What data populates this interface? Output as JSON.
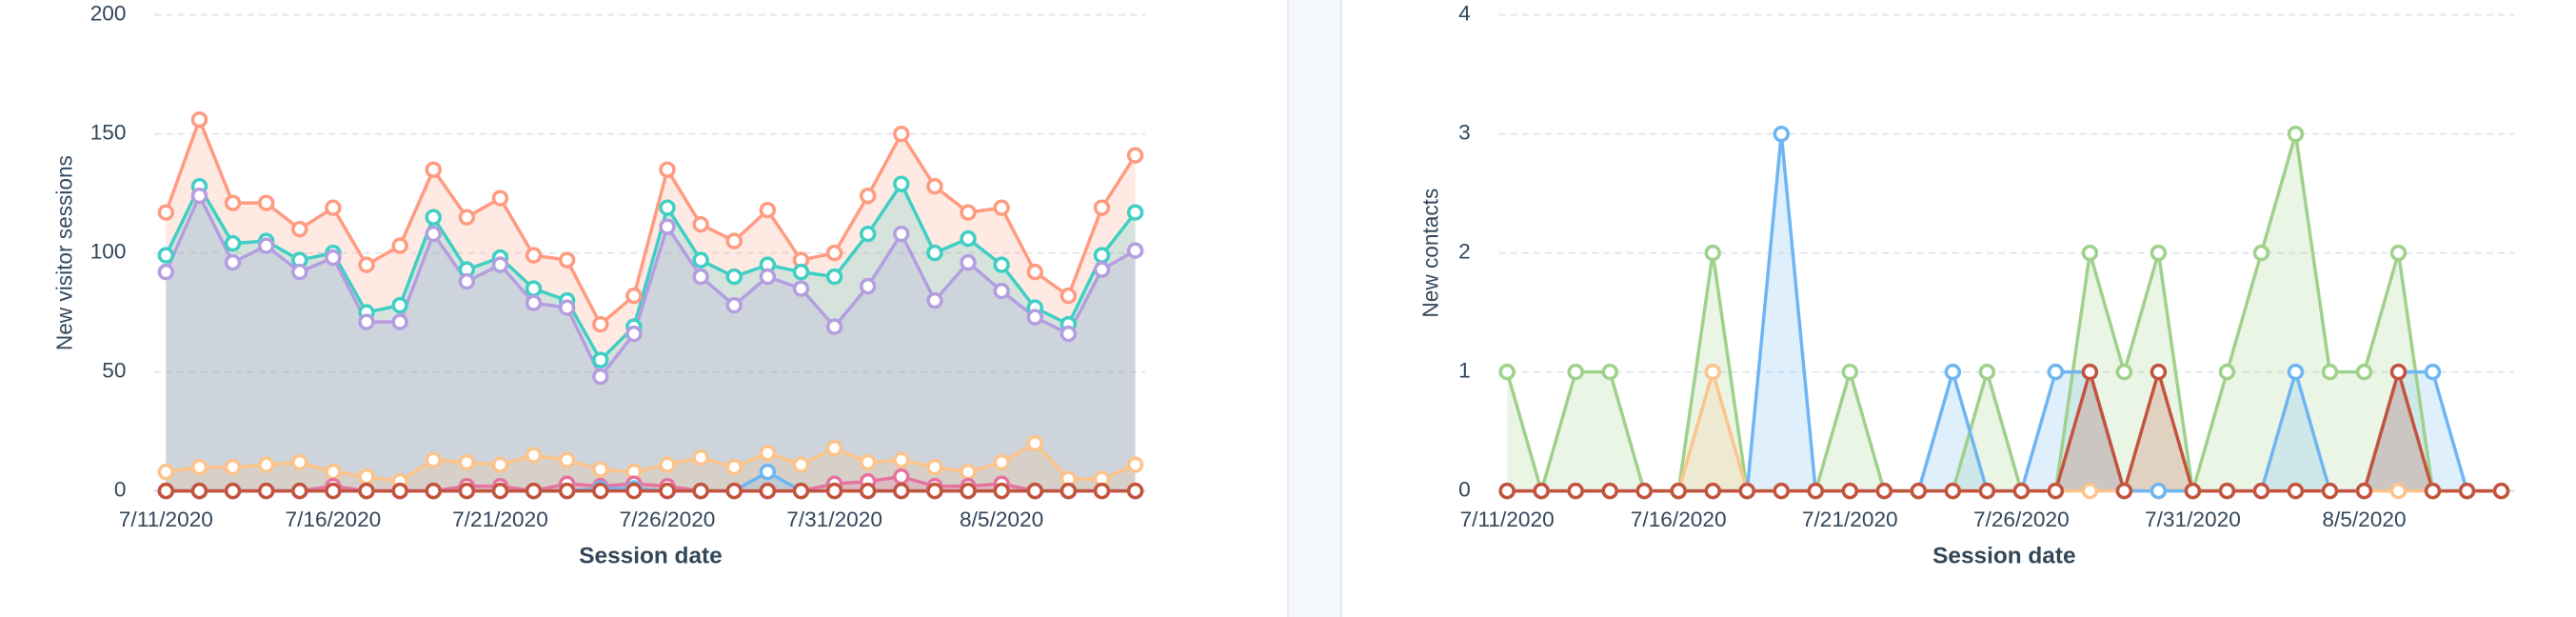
{
  "chart_data": [
    {
      "type": "area",
      "ylabel": "New visitor sessions",
      "xlabel": "Session date",
      "categories": [
        "7/11/2020",
        null,
        null,
        null,
        null,
        "7/16/2020",
        null,
        null,
        null,
        null,
        "7/21/2020",
        null,
        null,
        null,
        null,
        "7/26/2020",
        null,
        null,
        null,
        null,
        "7/31/2020",
        null,
        null,
        null,
        null,
        "8/5/2020",
        null,
        null,
        null,
        null
      ],
      "ylim": [
        0,
        200
      ],
      "yticks": [
        0,
        50,
        100,
        150,
        200
      ],
      "grid": true,
      "series": [
        {
          "color": "#ff9b80",
          "values": [
            117,
            156,
            121,
            121,
            110,
            119,
            95,
            103,
            135,
            115,
            123,
            99,
            97,
            70,
            82,
            135,
            112,
            105,
            118,
            97,
            100,
            124,
            150,
            128,
            117,
            119,
            92,
            82,
            119,
            141
          ]
        },
        {
          "color": "#3fcfc4",
          "values": [
            99,
            128,
            104,
            105,
            97,
            100,
            75,
            78,
            115,
            93,
            98,
            85,
            80,
            55,
            69,
            119,
            97,
            90,
            95,
            92,
            90,
            108,
            129,
            100,
            106,
            95,
            77,
            70,
            99,
            117
          ]
        },
        {
          "color": "#b49ee0",
          "values": [
            92,
            124,
            96,
            103,
            92,
            98,
            71,
            71,
            108,
            88,
            95,
            79,
            77,
            48,
            66,
            111,
            90,
            78,
            90,
            85,
            69,
            86,
            108,
            80,
            96,
            84,
            73,
            66,
            93,
            101
          ]
        },
        {
          "color": "#fcc38a",
          "values": [
            8,
            10,
            10,
            11,
            12,
            8,
            6,
            4,
            13,
            12,
            11,
            15,
            13,
            9,
            8,
            11,
            14,
            10,
            16,
            11,
            18,
            12,
            13,
            10,
            8,
            12,
            20,
            5,
            5,
            11
          ]
        },
        {
          "color": "#e6739f",
          "values": [
            0,
            0,
            0,
            0,
            0,
            2,
            0,
            0,
            0,
            2,
            2,
            0,
            3,
            2,
            3,
            2,
            0,
            0,
            0,
            0,
            3,
            4,
            6,
            2,
            2,
            3,
            0,
            0,
            0,
            0
          ]
        },
        {
          "color": "#6fb5f2",
          "values": [
            0,
            0,
            0,
            0,
            0,
            0,
            0,
            0,
            0,
            0,
            0,
            0,
            0,
            1,
            1,
            0,
            0,
            0,
            8,
            0,
            0,
            0,
            0,
            0,
            0,
            0,
            0,
            0,
            0,
            0
          ]
        },
        {
          "color": "#c4533d",
          "values": [
            0,
            0,
            0,
            0,
            0,
            0,
            0,
            0,
            0,
            0,
            0,
            0,
            0,
            0,
            0,
            0,
            0,
            0,
            0,
            0,
            0,
            0,
            0,
            0,
            0,
            0,
            0,
            0,
            0,
            0
          ]
        }
      ]
    },
    {
      "type": "area",
      "ylabel": "New contacts",
      "xlabel": "Session date",
      "categories": [
        "7/11/2020",
        null,
        null,
        null,
        null,
        "7/16/2020",
        null,
        null,
        null,
        null,
        "7/21/2020",
        null,
        null,
        null,
        null,
        "7/26/2020",
        null,
        null,
        null,
        null,
        "7/31/2020",
        null,
        null,
        null,
        null,
        "8/5/2020",
        null,
        null,
        null,
        null
      ],
      "ylim": [
        0,
        4
      ],
      "yticks": [
        0,
        1,
        2,
        3,
        4
      ],
      "grid": true,
      "series": [
        {
          "color": "#9fd18b",
          "values": [
            1,
            0,
            1,
            1,
            0,
            0,
            2,
            0,
            0,
            0,
            1,
            0,
            0,
            0,
            1,
            0,
            0,
            2,
            1,
            2,
            0,
            1,
            2,
            3,
            1,
            1,
            2,
            0,
            0,
            0
          ]
        },
        {
          "color": "#fcc38a",
          "values": [
            0,
            0,
            0,
            0,
            0,
            0,
            1,
            0,
            0,
            0,
            0,
            0,
            0,
            0,
            0,
            0,
            0,
            0,
            0,
            0,
            0,
            0,
            0,
            0,
            0,
            0,
            0,
            0,
            0,
            0
          ]
        },
        {
          "color": "#6fb5f2",
          "values": [
            0,
            0,
            0,
            0,
            0,
            0,
            0,
            0,
            3,
            0,
            0,
            0,
            0,
            1,
            0,
            0,
            1,
            1,
            0,
            0,
            0,
            0,
            0,
            1,
            0,
            0,
            1,
            1,
            0,
            0
          ]
        },
        {
          "color": "#c4533d",
          "values": [
            0,
            0,
            0,
            0,
            0,
            0,
            0,
            0,
            0,
            0,
            0,
            0,
            0,
            0,
            0,
            0,
            0,
            1,
            0,
            1,
            0,
            0,
            0,
            0,
            0,
            0,
            1,
            0,
            0,
            0
          ]
        }
      ]
    }
  ]
}
